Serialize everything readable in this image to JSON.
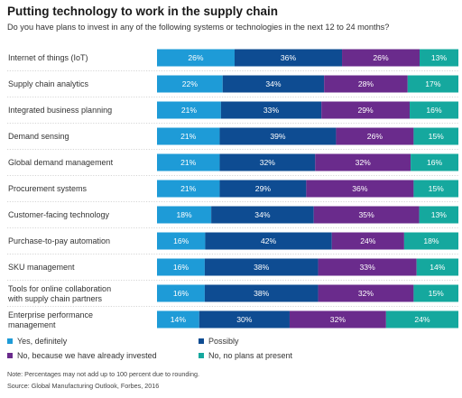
{
  "title": "Putting technology to work in the supply chain",
  "subtitle": "Do you have plans to invest in any of the following systems or technologies in the next 12 to 24 months?",
  "note": "Note: Percentages may not add up to 100 percent due to rounding.",
  "source": "Source: Global Manufacturing Outlook, Forbes, 2016",
  "colors": {
    "yes_definitely": "#1e9bd7",
    "possibly": "#0e4c92",
    "already_invested": "#6a2b8c",
    "no_plans": "#15a89e"
  },
  "chart_data": {
    "type": "bar",
    "orientation": "horizontal",
    "stacked": true,
    "categories": [
      "Internet of things (IoT)",
      "Supply chain analytics",
      "Integrated business planning",
      "Demand sensing",
      "Global demand management",
      "Procurement systems",
      "Customer-facing technology",
      "Purchase-to-pay automation",
      "SKU management",
      "Tools for online collaboration with supply chain partners",
      "Enterprise performance management"
    ],
    "series": [
      {
        "name": "Yes, definitely",
        "values": [
          26,
          22,
          21,
          21,
          21,
          21,
          18,
          16,
          16,
          16,
          14
        ]
      },
      {
        "name": "Possibly",
        "values": [
          36,
          34,
          33,
          39,
          32,
          29,
          34,
          42,
          38,
          38,
          30
        ]
      },
      {
        "name": "No, because we have already invested",
        "values": [
          26,
          28,
          29,
          26,
          32,
          36,
          35,
          24,
          33,
          32,
          32
        ]
      },
      {
        "name": "No, no plans at present",
        "values": [
          13,
          17,
          16,
          15,
          16,
          15,
          13,
          18,
          14,
          15,
          24
        ]
      }
    ],
    "value_suffix": "%",
    "legend_placement": "bottom",
    "grid": false
  }
}
